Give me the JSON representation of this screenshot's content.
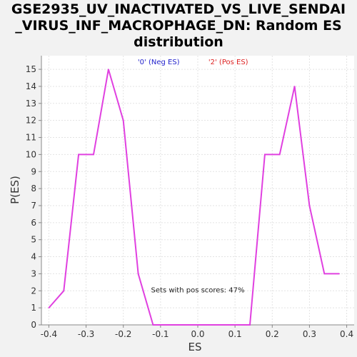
{
  "chart_data": {
    "type": "line",
    "title_lines": [
      "GSE2935_UV_INACTIVATED_VS_LIVE_SENDAI",
      "_VIRUS_INF_MACROPHAGE_DN: Random ES",
      "distribution"
    ],
    "xlabel": "ES",
    "ylabel": "P(ES)",
    "xlim": [
      -0.42,
      0.42
    ],
    "ylim": [
      0,
      15.8
    ],
    "xticks": [
      "-0.4",
      "-0.3",
      "-0.2",
      "-0.1",
      "0.0",
      "0.1",
      "0.2",
      "0.3",
      "0.4"
    ],
    "yticks": [
      "0",
      "1",
      "2",
      "3",
      "4",
      "5",
      "6",
      "7",
      "8",
      "9",
      "10",
      "11",
      "12",
      "13",
      "14",
      "15"
    ],
    "grid": true,
    "color": "#e040e0",
    "x": [
      -0.4,
      -0.36,
      -0.32,
      -0.28,
      -0.24,
      -0.2,
      -0.16,
      -0.12,
      -0.08,
      -0.04,
      0.0,
      0.04,
      0.08,
      0.12,
      0.14,
      0.18,
      0.22,
      0.26,
      0.3,
      0.34,
      0.38
    ],
    "y": [
      1,
      2,
      10,
      10,
      15,
      12,
      3,
      0,
      0,
      0,
      0,
      0,
      0,
      0,
      0,
      10,
      10,
      14,
      7,
      3,
      3
    ],
    "annotations": [
      {
        "text": "'0' (Neg ES)",
        "color": "#2222cc",
        "x": -0.105,
        "y": 15.3
      },
      {
        "text": "'2' (Pos ES)",
        "color": "#dd2222",
        "x": 0.082,
        "y": 15.3
      },
      {
        "text": "Sets with pos scores: 47%",
        "color": "#222222",
        "x": 0.0,
        "y": 1.9
      }
    ]
  }
}
